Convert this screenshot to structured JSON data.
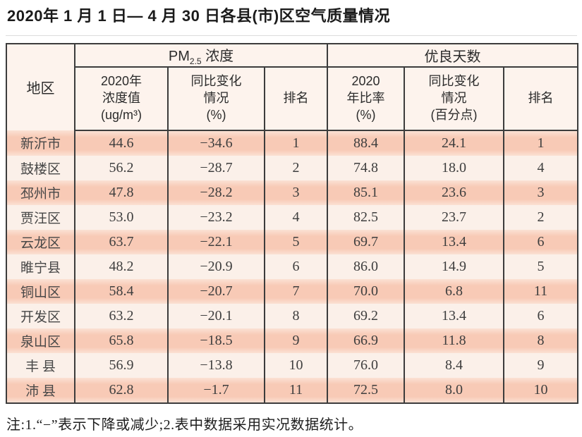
{
  "title": "2020年 1 月 1 日— 4 月 30 日各县(市)区空气质量情况",
  "note": "注:1.“−”表示下降或减少;2.表中数据采用实况数据统计。",
  "table": {
    "region_header": "地区",
    "pm_group": {
      "prefix": "PM",
      "sub": "2.5",
      "suffix": " 浓度"
    },
    "good_group_label": "优良天数",
    "subheaders": [
      "2020年\n浓度值\n(ug/m³)",
      "同比变化\n情况\n(%)",
      "排名",
      "2020\n年比率\n(%)",
      "同比变化\n情况\n(百分点)",
      "排名"
    ],
    "rows": [
      {
        "region": "新沂市",
        "pm_value": "44.6",
        "pm_change": "−34.6",
        "pm_rank": "1",
        "good_rate": "88.4",
        "good_change": "24.1",
        "good_rank": "1"
      },
      {
        "region": "鼓楼区",
        "pm_value": "56.2",
        "pm_change": "−28.7",
        "pm_rank": "2",
        "good_rate": "74.8",
        "good_change": "18.0",
        "good_rank": "4"
      },
      {
        "region": "邳州市",
        "pm_value": "47.8",
        "pm_change": "−28.2",
        "pm_rank": "3",
        "good_rate": "85.1",
        "good_change": "23.6",
        "good_rank": "3"
      },
      {
        "region": "贾汪区",
        "pm_value": "53.0",
        "pm_change": "−23.2",
        "pm_rank": "4",
        "good_rate": "82.5",
        "good_change": "23.7",
        "good_rank": "2"
      },
      {
        "region": "云龙区",
        "pm_value": "63.7",
        "pm_change": "−22.1",
        "pm_rank": "5",
        "good_rate": "69.7",
        "good_change": "13.4",
        "good_rank": "6"
      },
      {
        "region": "睢宁县",
        "pm_value": "48.2",
        "pm_change": "−20.9",
        "pm_rank": "6",
        "good_rate": "86.0",
        "good_change": "14.9",
        "good_rank": "5"
      },
      {
        "region": "铜山区",
        "pm_value": "58.4",
        "pm_change": "−20.7",
        "pm_rank": "7",
        "good_rate": "70.0",
        "good_change": "6.8",
        "good_rank": "11"
      },
      {
        "region": "开发区",
        "pm_value": "63.2",
        "pm_change": "−20.1",
        "pm_rank": "8",
        "good_rate": "69.2",
        "good_change": "13.4",
        "good_rank": "6"
      },
      {
        "region": "泉山区",
        "pm_value": "65.8",
        "pm_change": "−18.5",
        "pm_rank": "9",
        "good_rate": "66.9",
        "good_change": "11.8",
        "good_rank": "8"
      },
      {
        "region": "丰 县",
        "pm_value": "56.9",
        "pm_change": "−13.8",
        "pm_rank": "10",
        "good_rate": "76.0",
        "good_change": "8.4",
        "good_rank": "9"
      },
      {
        "region": "沛 县",
        "pm_value": "62.8",
        "pm_change": "−1.7",
        "pm_rank": "11",
        "good_rate": "72.5",
        "good_change": "8.0",
        "good_rank": "10"
      }
    ]
  },
  "colors": {
    "stripe_salmon": "#f8cab6",
    "stripe_light": "#fbf0e9",
    "header_bg": "#fdf3ed",
    "border": "#3c3c3c"
  },
  "chart_data": {
    "type": "table",
    "title": "2020年1月1日—4月30日各县(市)区空气质量情况",
    "columns": [
      "地区",
      "PM2.5 2020年浓度值(ug/m³)",
      "PM2.5 同比变化情况(%)",
      "PM2.5 排名",
      "优良天数 2020年比率(%)",
      "优良天数 同比变化情况(百分点)",
      "优良天数 排名"
    ],
    "rows": [
      [
        "新沂市",
        44.6,
        -34.6,
        1,
        88.4,
        24.1,
        1
      ],
      [
        "鼓楼区",
        56.2,
        -28.7,
        2,
        74.8,
        18.0,
        4
      ],
      [
        "邳州市",
        47.8,
        -28.2,
        3,
        85.1,
        23.6,
        3
      ],
      [
        "贾汪区",
        53.0,
        -23.2,
        4,
        82.5,
        23.7,
        2
      ],
      [
        "云龙区",
        63.7,
        -22.1,
        5,
        69.7,
        13.4,
        6
      ],
      [
        "睢宁县",
        48.2,
        -20.9,
        6,
        86.0,
        14.9,
        5
      ],
      [
        "铜山区",
        58.4,
        -20.7,
        7,
        70.0,
        6.8,
        11
      ],
      [
        "开发区",
        63.2,
        -20.1,
        8,
        69.2,
        13.4,
        6
      ],
      [
        "泉山区",
        65.8,
        -18.5,
        9,
        66.9,
        11.8,
        8
      ],
      [
        "丰县",
        56.9,
        -13.8,
        10,
        76.0,
        8.4,
        9
      ],
      [
        "沛县",
        62.8,
        -1.7,
        11,
        72.5,
        8.0,
        10
      ]
    ]
  }
}
